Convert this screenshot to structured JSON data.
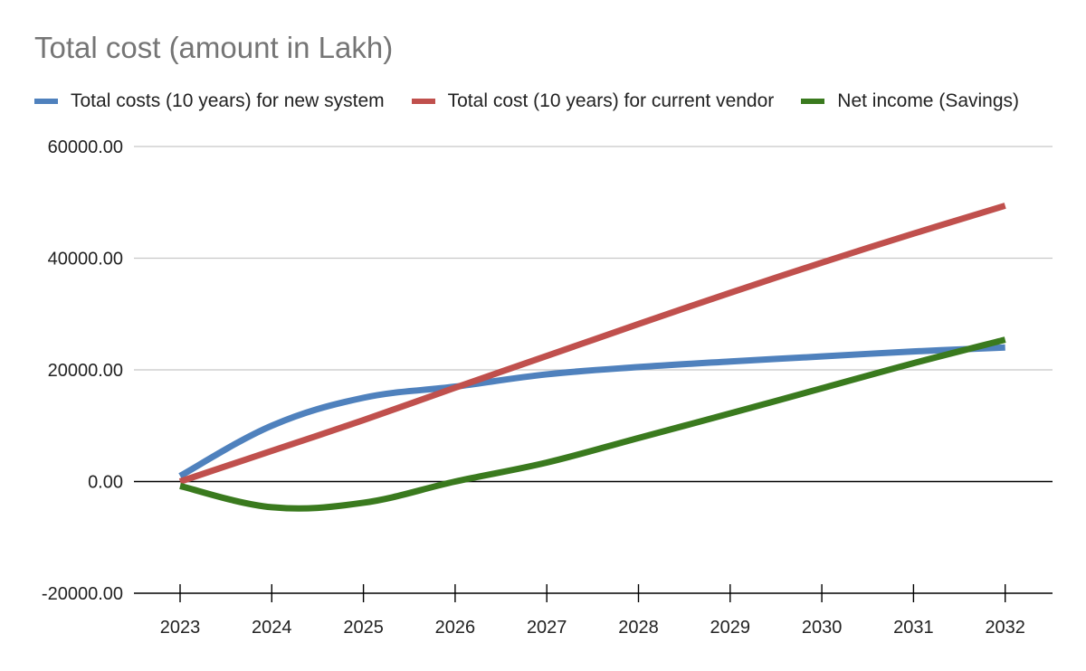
{
  "chart_data": {
    "type": "line",
    "title": "Total cost (amount in Lakh)",
    "xlabel": "",
    "ylabel": "",
    "categories": [
      "2023",
      "2024",
      "2025",
      "2026",
      "2027",
      "2028",
      "2029",
      "2030",
      "2031",
      "2032"
    ],
    "ylim": [
      -20000,
      60000
    ],
    "yticks": [
      60000,
      40000,
      20000,
      0,
      -20000
    ],
    "ytick_labels": [
      "60000.00",
      "40000.00",
      "20000.00",
      "0.00",
      "-20000.00"
    ],
    "grid": true,
    "legend_position": "top",
    "series": [
      {
        "name": "Total costs (10 years) for new system",
        "color": "#4f81bd",
        "values": [
          1000,
          10000,
          15000,
          17000,
          19200,
          20500,
          21500,
          22400,
          23300,
          24000
        ]
      },
      {
        "name": "Total cost (10 years) for current vendor",
        "color": "#c0504d",
        "values": [
          0,
          5500,
          11000,
          16800,
          22500,
          28200,
          33800,
          39200,
          44400,
          49400
        ]
      },
      {
        "name": "Net income (Savings)",
        "color": "#3a7a1e",
        "values": [
          -800,
          -4600,
          -3800,
          0,
          3400,
          7800,
          12200,
          16700,
          21200,
          25400
        ]
      }
    ]
  }
}
